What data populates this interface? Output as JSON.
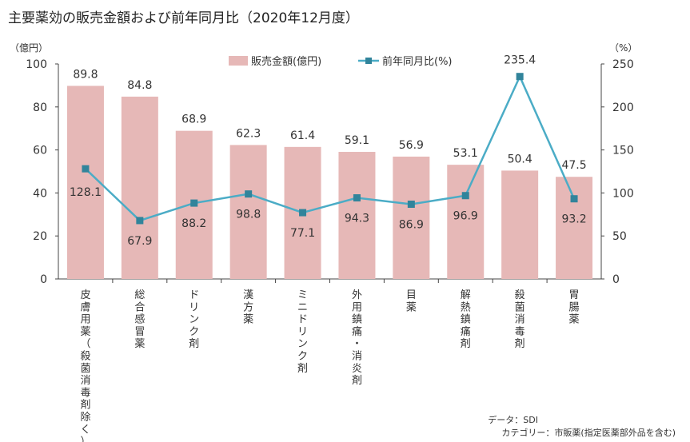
{
  "chart_data": {
    "type": "bar+line",
    "title": "主要薬効の販売金額および前年同月比（2020年12月度）",
    "categories": [
      "皮膚用薬(殺菌消毒剤除く)",
      "総合感冒薬",
      "ドリンク剤",
      "漢方薬",
      "ミニドリンク剤",
      "外用鎮痛・消炎剤",
      "目薬",
      "解熱鎮痛剤",
      "殺菌消毒剤",
      "胃腸薬"
    ],
    "series": [
      {
        "name": "販売金額(億円)",
        "type": "bar",
        "axis": "left",
        "color": "#e6b8b7",
        "values": [
          89.8,
          84.8,
          68.9,
          62.3,
          61.4,
          59.1,
          56.9,
          53.1,
          50.4,
          47.5
        ]
      },
      {
        "name": "前年同月比(%)",
        "type": "line",
        "axis": "right",
        "color": "#4bacc6",
        "values": [
          128.1,
          67.9,
          88.2,
          98.8,
          77.1,
          94.3,
          86.9,
          96.9,
          235.4,
          93.2
        ]
      }
    ],
    "left_axis": {
      "unit_label": "（億円）",
      "range": [
        0,
        100
      ],
      "ticks": [
        0,
        20,
        40,
        60,
        80,
        100
      ]
    },
    "right_axis": {
      "unit_label": "（%）",
      "range": [
        0,
        250
      ],
      "ticks": [
        0,
        50,
        100,
        150,
        200,
        250
      ]
    },
    "legend_position": "top",
    "grid": false
  },
  "footer": {
    "source": "データ：SDI",
    "category_note": "カテゴリー：市販薬(指定医薬部外品を含む)"
  }
}
